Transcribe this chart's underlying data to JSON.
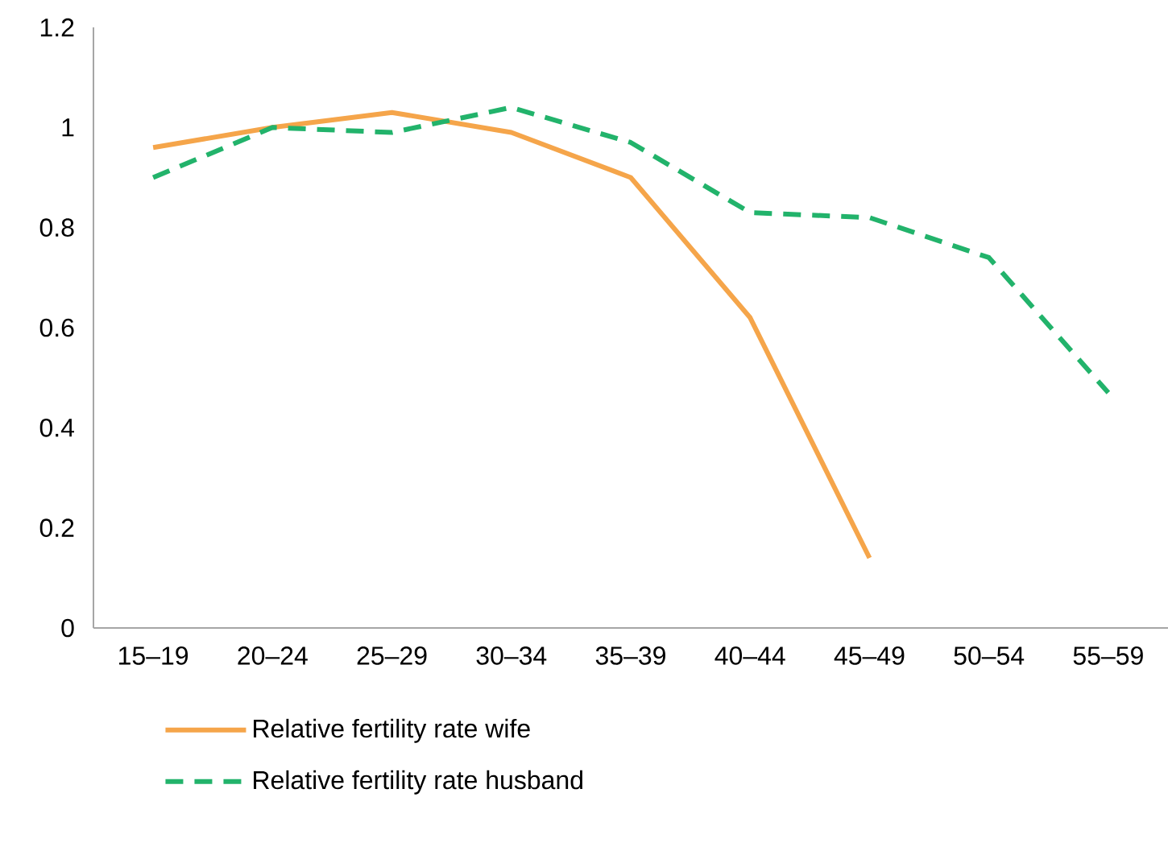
{
  "chart_data": {
    "type": "line",
    "categories": [
      "15–19",
      "20–24",
      "25–29",
      "30–34",
      "35–39",
      "40–44",
      "45–49",
      "50–54",
      "55–59"
    ],
    "series": [
      {
        "name": "Relative fertility rate wife",
        "color": "#f5a54a",
        "line_style": "solid",
        "values": [
          0.96,
          1.0,
          1.03,
          0.99,
          0.9,
          0.62,
          0.14,
          null,
          null
        ]
      },
      {
        "name": "Relative fertility rate husband",
        "color": "#22b36b",
        "line_style": "dashed",
        "values": [
          0.9,
          1.0,
          0.99,
          1.04,
          0.97,
          0.83,
          0.82,
          0.74,
          0.47
        ]
      }
    ],
    "ylim": [
      0,
      1.2
    ],
    "yticks": [
      0,
      0.2,
      0.4,
      0.6,
      0.8,
      1,
      1.2
    ],
    "legend": "bottom"
  }
}
